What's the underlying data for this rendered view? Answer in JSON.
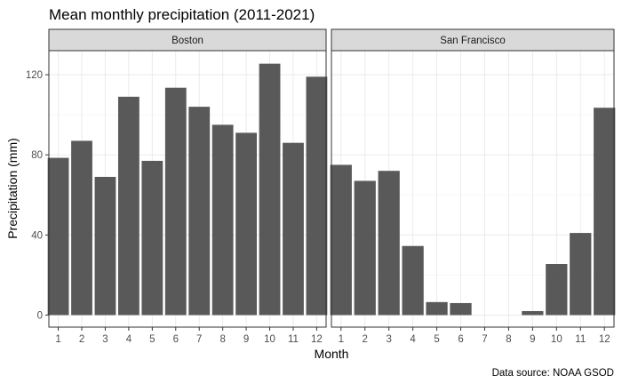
{
  "chart_data": {
    "type": "bar",
    "title": "Mean monthly precipitation (2011-2021)",
    "xlabel": "Month",
    "ylabel": "Precipitation (mm)",
    "caption": "Data source: NOAA GSOD",
    "categories": [
      "1",
      "2",
      "3",
      "4",
      "5",
      "6",
      "7",
      "8",
      "9",
      "10",
      "11",
      "12"
    ],
    "ylim": [
      -6,
      132
    ],
    "yticks": [
      0,
      40,
      80,
      120
    ],
    "grid": true,
    "bar_color": "#595959",
    "strip_color": "#d9d9d9",
    "facets": [
      {
        "name": "Boston",
        "values": [
          78.5,
          87,
          69,
          109,
          77,
          113.5,
          104,
          95,
          91,
          125.5,
          86,
          119
        ]
      },
      {
        "name": "San Francisco",
        "values": [
          75,
          67,
          72,
          34.5,
          6.5,
          6,
          0,
          0,
          2,
          25.5,
          41,
          103.5
        ]
      }
    ]
  }
}
